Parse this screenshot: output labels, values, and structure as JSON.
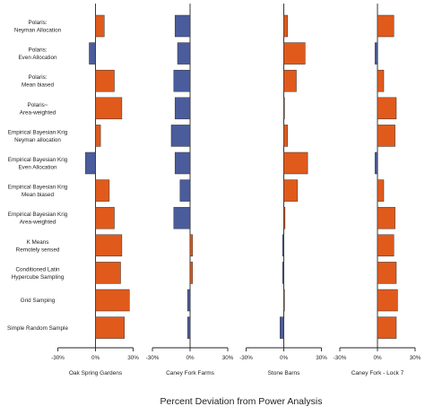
{
  "chart_data": {
    "type": "bar",
    "orientation": "horizontal",
    "colors": {
      "positive": "#e05a1c",
      "negative": "#4a5c9c",
      "axis": "#222222"
    },
    "xlabel": "Percent Deviation from Power Analysis",
    "xlim": [
      -30,
      30
    ],
    "x_ticks": [
      -30,
      0,
      30
    ],
    "x_tick_labels": [
      "-30%",
      "0%",
      "30%"
    ],
    "categories": [
      [
        "Polaris:",
        "Neyman Allocation"
      ],
      [
        "Polaris:",
        "Even Allocation"
      ],
      [
        "Polaris:",
        "Mean biased"
      ],
      [
        "Polaris~",
        "Area-weighted"
      ],
      [
        "Empirical Bayesian Krig",
        "Neyman allocation"
      ],
      [
        "Empirical Bayesian Krig",
        "Even Allocation"
      ],
      [
        "Empirical Bayesian Krig",
        "Mean biased"
      ],
      [
        "Empirical Bayesian Krig",
        "Area-weighted"
      ],
      [
        "K Means",
        "Remotely sensed"
      ],
      [
        "Conditioned Latin",
        "Hypercube Sampling"
      ],
      [
        "Grid Samping"
      ],
      [
        "Simple Random Sample"
      ]
    ],
    "series": [
      {
        "name": "Oak Spring Gardens",
        "values": [
          7,
          -5,
          15,
          21,
          4,
          -8,
          11,
          15,
          21,
          20,
          27,
          23
        ]
      },
      {
        "name": "Caney Fork Farms",
        "values": [
          -12,
          -10,
          -13,
          -12,
          -15,
          -12,
          -8,
          -13,
          2,
          2,
          -2,
          -2
        ]
      },
      {
        "name": "Stone Barns",
        "values": [
          3,
          17,
          10,
          0,
          3,
          19,
          11,
          1,
          -1,
          -1,
          0,
          -3
        ]
      },
      {
        "name": "Caney Fork - Lock 7",
        "values": [
          13,
          -2,
          5,
          15,
          14,
          -2,
          5,
          14,
          13,
          15,
          16,
          15
        ]
      }
    ],
    "grid": false,
    "legend": "none"
  }
}
